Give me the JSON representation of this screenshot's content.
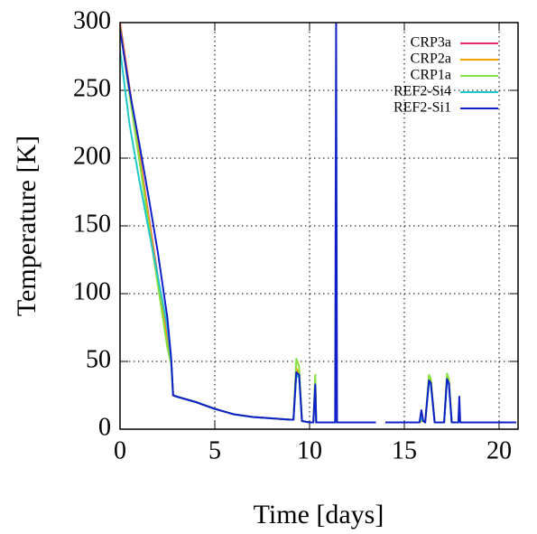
{
  "chart_data": {
    "type": "line",
    "xlabel": "Time [days]",
    "ylabel": "Temperature [K]",
    "x": [
      0,
      0.5,
      1,
      1.5,
      2,
      2.5,
      2.7,
      2.8,
      3,
      4,
      5,
      6,
      7,
      8,
      9,
      9.15,
      9.3,
      9.45,
      9.6,
      10,
      10.2,
      10.3,
      10.35,
      10.5,
      11,
      11.35,
      11.4,
      11.45,
      12,
      13,
      13.5,
      13.7,
      14,
      15,
      15.5,
      15.8,
      15.9,
      16,
      16.1,
      16.3,
      16.4,
      16.6,
      17,
      17.1,
      17.25,
      17.35,
      17.5,
      17.85,
      17.9,
      17.95,
      18.5,
      19,
      20,
      20.9
    ],
    "series": [
      {
        "name": "CRP3a",
        "color": "#e6306e",
        "values": [
          300,
          252,
          205,
          158,
          112,
          65,
          50,
          25,
          24,
          20,
          15,
          11,
          9,
          8,
          7,
          7,
          44,
          40,
          6,
          5,
          5,
          36,
          5,
          5,
          5,
          5,
          5,
          5,
          5,
          5,
          5,
          null,
          5,
          5,
          5,
          5,
          6,
          6,
          5,
          38,
          36,
          5,
          5,
          5,
          39,
          36,
          5,
          5,
          6,
          5,
          5,
          5,
          5,
          5
        ]
      },
      {
        "name": "CRP2a",
        "color": "#f5a000",
        "values": [
          298,
          250,
          203,
          156,
          110,
          63,
          50,
          25,
          24,
          20,
          15,
          11,
          9,
          8,
          7,
          7,
          45,
          41,
          6,
          5,
          5,
          37,
          5,
          5,
          5,
          5,
          5,
          5,
          5,
          5,
          5,
          null,
          5,
          5,
          5,
          5,
          6,
          6,
          5,
          38,
          36,
          5,
          5,
          5,
          39,
          36,
          5,
          5,
          6,
          5,
          5,
          5,
          5,
          5
        ]
      },
      {
        "name": "CRP1a",
        "color": "#88e040",
        "values": [
          296,
          247,
          200,
          152,
          106,
          60,
          48,
          25,
          24,
          20,
          15,
          11,
          9,
          8,
          7,
          7,
          52,
          46,
          6,
          5,
          5,
          40,
          5,
          5,
          5,
          5,
          5,
          5,
          5,
          5,
          5,
          null,
          5,
          5,
          5,
          5,
          7,
          6,
          5,
          40,
          37,
          5,
          5,
          5,
          41,
          37,
          5,
          5,
          7,
          5,
          5,
          5,
          5,
          5
        ]
      },
      {
        "name": "REF2-Si4",
        "color": "#20c8c8",
        "values": [
          280,
          225,
          185,
          148,
          112,
          75,
          50,
          25,
          24,
          20,
          15,
          11,
          9,
          8,
          7,
          7,
          40,
          38,
          6,
          5,
          5,
          32,
          5,
          5,
          5,
          5,
          5,
          5,
          5,
          5,
          5,
          null,
          5,
          5,
          5,
          5,
          8,
          6,
          5,
          35,
          33,
          5,
          5,
          5,
          36,
          33,
          5,
          5,
          8,
          5,
          5,
          5,
          5,
          5
        ]
      },
      {
        "name": "REF2-Si1",
        "color": "#1020c8",
        "values": [
          295,
          250,
          212,
          172,
          130,
          82,
          52,
          25,
          24,
          20,
          15,
          11,
          9,
          8,
          7,
          7,
          42,
          40,
          6,
          5,
          5,
          33,
          5,
          5,
          5,
          5,
          300,
          5,
          5,
          5,
          5,
          null,
          5,
          5,
          5,
          5,
          14,
          6,
          5,
          36,
          34,
          5,
          5,
          5,
          37,
          34,
          5,
          5,
          24,
          5,
          5,
          5,
          5,
          5
        ]
      }
    ],
    "xlim": [
      0,
      21
    ],
    "ylim": [
      0,
      300
    ],
    "xticks": [
      0,
      5,
      10,
      15,
      20
    ],
    "yticks": [
      0,
      50,
      100,
      150,
      200,
      250,
      300
    ],
    "grid": true,
    "legend": "upper right"
  }
}
